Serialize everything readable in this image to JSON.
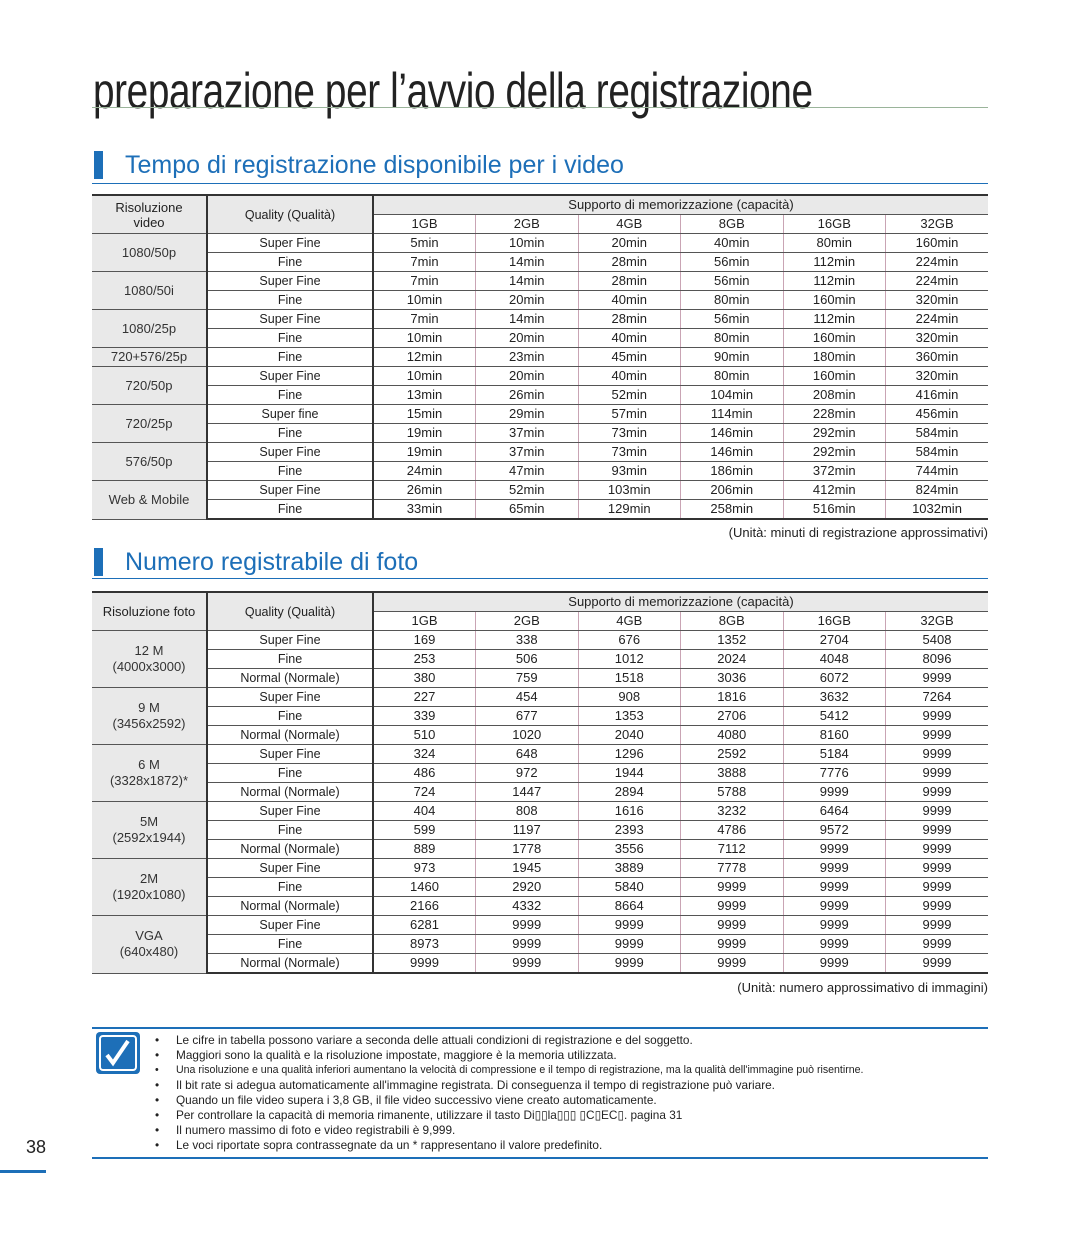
{
  "header": {
    "title": "preparazione per l’avvio della registrazione"
  },
  "video": {
    "heading": "Tempo di registrazione disponibile per i video",
    "columns": {
      "resolution": [
        "Risoluzione",
        "video"
      ],
      "quality": "Quality (Qualità)",
      "storage": "Supporto di memorizzazione (capacità)",
      "sizes": [
        "1GB",
        "2GB",
        "4GB",
        "8GB",
        "16GB",
        "32GB"
      ]
    },
    "groups": [
      {
        "resolution": [
          "1080/50p"
        ],
        "rows": [
          {
            "quality": "Super Fine",
            "values": [
              "5min",
              "10min",
              "20min",
              "40min",
              "80min",
              "160min"
            ]
          },
          {
            "quality": "Fine",
            "values": [
              "7min",
              "14min",
              "28min",
              "56min",
              "112min",
              "224min"
            ]
          }
        ]
      },
      {
        "resolution": [
          "1080/50i"
        ],
        "rows": [
          {
            "quality": "Super Fine",
            "values": [
              "7min",
              "14min",
              "28min",
              "56min",
              "112min",
              "224min"
            ]
          },
          {
            "quality": "Fine",
            "values": [
              "10min",
              "20min",
              "40min",
              "80min",
              "160min",
              "320min"
            ]
          }
        ]
      },
      {
        "resolution": [
          "1080/25p"
        ],
        "rows": [
          {
            "quality": "Super Fine",
            "values": [
              "7min",
              "14min",
              "28min",
              "56min",
              "112min",
              "224min"
            ]
          },
          {
            "quality": "Fine",
            "values": [
              "10min",
              "20min",
              "40min",
              "80min",
              "160min",
              "320min"
            ]
          }
        ]
      },
      {
        "resolution": [
          "720+576/25p"
        ],
        "rows": [
          {
            "quality": "Fine",
            "values": [
              "12min",
              "23min",
              "45min",
              "90min",
              "180min",
              "360min"
            ]
          }
        ]
      },
      {
        "resolution": [
          "720/50p"
        ],
        "rows": [
          {
            "quality": "Super Fine",
            "values": [
              "10min",
              "20min",
              "40min",
              "80min",
              "160min",
              "320min"
            ]
          },
          {
            "quality": "Fine",
            "values": [
              "13min",
              "26min",
              "52min",
              "104min",
              "208min",
              "416min"
            ]
          }
        ]
      },
      {
        "resolution": [
          "720/25p"
        ],
        "rows": [
          {
            "quality": "Super fine",
            "values": [
              "15min",
              "29min",
              "57min",
              "114min",
              "228min",
              "456min"
            ]
          },
          {
            "quality": "Fine",
            "values": [
              "19min",
              "37min",
              "73min",
              "146min",
              "292min",
              "584min"
            ]
          }
        ]
      },
      {
        "resolution": [
          "576/50p"
        ],
        "rows": [
          {
            "quality": "Super Fine",
            "values": [
              "19min",
              "37min",
              "73min",
              "146min",
              "292min",
              "584min"
            ]
          },
          {
            "quality": "Fine",
            "values": [
              "24min",
              "47min",
              "93min",
              "186min",
              "372min",
              "744min"
            ]
          }
        ]
      },
      {
        "resolution": [
          "Web & Mobile"
        ],
        "rows": [
          {
            "quality": "Super Fine",
            "values": [
              "26min",
              "52min",
              "103min",
              "206min",
              "412min",
              "824min"
            ]
          },
          {
            "quality": "Fine",
            "values": [
              "33min",
              "65min",
              "129min",
              "258min",
              "516min",
              "1032min"
            ]
          }
        ]
      }
    ],
    "unit": "(Unità: minuti di registrazione approssimativi)"
  },
  "photo": {
    "heading": "Numero registrabile di foto",
    "columns": {
      "resolution": [
        "Risoluzione foto"
      ],
      "quality": "Quality (Qualità)",
      "storage": "Supporto di memorizzazione (capacità)",
      "sizes": [
        "1GB",
        "2GB",
        "4GB",
        "8GB",
        "16GB",
        "32GB"
      ]
    },
    "groups": [
      {
        "resolution": [
          "12 M",
          "(4000x3000)"
        ],
        "rows": [
          {
            "quality": "Super Fine",
            "values": [
              169,
              338,
              676,
              1352,
              2704,
              5408
            ]
          },
          {
            "quality": "Fine",
            "values": [
              253,
              506,
              1012,
              2024,
              4048,
              8096
            ]
          },
          {
            "quality": "Normal (Normale)",
            "values": [
              380,
              759,
              1518,
              3036,
              6072,
              9999
            ]
          }
        ]
      },
      {
        "resolution": [
          "9 M",
          "(3456x2592)"
        ],
        "rows": [
          {
            "quality": "Super Fine",
            "values": [
              227,
              454,
              908,
              1816,
              3632,
              7264
            ]
          },
          {
            "quality": "Fine",
            "values": [
              339,
              677,
              1353,
              2706,
              5412,
              9999
            ]
          },
          {
            "quality": "Normal (Normale)",
            "values": [
              510,
              1020,
              2040,
              4080,
              8160,
              9999
            ]
          }
        ]
      },
      {
        "resolution": [
          "6 M",
          "(3328x1872)*"
        ],
        "rows": [
          {
            "quality": "Super Fine",
            "values": [
              324,
              648,
              1296,
              2592,
              5184,
              9999
            ]
          },
          {
            "quality": "Fine",
            "values": [
              486,
              972,
              1944,
              3888,
              7776,
              9999
            ]
          },
          {
            "quality": "Normal (Normale)",
            "values": [
              724,
              1447,
              2894,
              5788,
              9999,
              9999
            ]
          }
        ]
      },
      {
        "resolution": [
          "5M",
          "(2592x1944)"
        ],
        "rows": [
          {
            "quality": "Super Fine",
            "values": [
              404,
              808,
              1616,
              3232,
              6464,
              9999
            ]
          },
          {
            "quality": "Fine",
            "values": [
              599,
              1197,
              2393,
              4786,
              9572,
              9999
            ]
          },
          {
            "quality": "Normal (Normale)",
            "values": [
              889,
              1778,
              3556,
              7112,
              9999,
              9999
            ]
          }
        ]
      },
      {
        "resolution": [
          "2M",
          "(1920x1080)"
        ],
        "rows": [
          {
            "quality": "Super Fine",
            "values": [
              973,
              1945,
              3889,
              7778,
              9999,
              9999
            ]
          },
          {
            "quality": "Fine",
            "values": [
              1460,
              2920,
              5840,
              9999,
              9999,
              9999
            ]
          },
          {
            "quality": "Normal (Normale)",
            "values": [
              2166,
              4332,
              8664,
              9999,
              9999,
              9999
            ]
          }
        ]
      },
      {
        "resolution": [
          "VGA",
          "(640x480)"
        ],
        "rows": [
          {
            "quality": "Super Fine",
            "values": [
              6281,
              9999,
              9999,
              9999,
              9999,
              9999
            ]
          },
          {
            "quality": "Fine",
            "values": [
              8973,
              9999,
              9999,
              9999,
              9999,
              9999
            ]
          },
          {
            "quality": "Normal (Normale)",
            "values": [
              9999,
              9999,
              9999,
              9999,
              9999,
              9999
            ]
          }
        ]
      }
    ],
    "unit": "(Unità: numero approssimativo di immagini)"
  },
  "notes": [
    "Le cifre in tabella possono variare a seconda delle attuali condizioni di registrazione e del soggetto.",
    "Maggiori sono la qualità e la risoluzione impostate, maggiore è la memoria utilizzata.",
    "Una risoluzione e una qualità inferiori aumentano la velocità di compressione e il tempo di registrazione, ma la qualità dell'immagine può risentirne.",
    "Il bit rate si adegua automaticamente all'immagine registrata. Di conseguenza il tempo di registrazione può variare.",
    "Quando un file video supera i 3,8 GB, il file video successivo viene creato automaticamente.",
    "Per controllare la capacità di memoria rimanente, utilizzare il tasto Di▯▯la▯▯▯ ▯C▯EC▯.   pagina 31",
    "Il numero massimo di foto e video registrabili è 9,999.",
    "Le voci riportate sopra contrassegnate da un * rappresentano il valore predefinito."
  ],
  "page_number": "38"
}
